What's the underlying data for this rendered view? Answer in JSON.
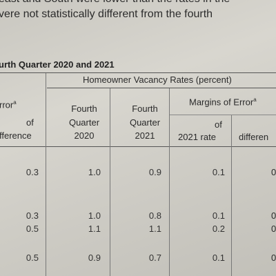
{
  "paragraph": {
    "line1": "east and South were lower than the rates in the",
    "line2": "vere not statistically different from the fourth"
  },
  "caption": "urth Quarter 2020 and 2021",
  "table": {
    "left_group_header": "rror",
    "left_group_superscript": "a",
    "left_sub_header": [
      "of",
      "fference"
    ],
    "right_group_header": "Homeowner Vacancy Rates (percent)",
    "col_fq2020": [
      "Fourth",
      "Quarter",
      "2020"
    ],
    "col_fq2021": [
      "Fourth",
      "Quarter",
      "2021"
    ],
    "moe_header": "Margins of Error",
    "moe_superscript": "a",
    "moe_2021": [
      "of",
      "2021 rate"
    ],
    "moe_diff": "differen",
    "rows": [
      {
        "left": "0.3",
        "fq2020": "1.0",
        "fq2021": "0.9",
        "moe2021": "0.1",
        "cut": "0"
      },
      {
        "left": "0.3",
        "fq2020": "1.0",
        "fq2021": "0.8",
        "moe2021": "0.1",
        "cut": "0"
      },
      {
        "left": "0.5",
        "fq2020": "1.1",
        "fq2021": "1.1",
        "moe2021": "0.2",
        "cut": "0"
      },
      {
        "left": "0.5",
        "fq2020": "0.9",
        "fq2021": "0.7",
        "moe2021": "0.1",
        "cut": "0"
      }
    ]
  }
}
